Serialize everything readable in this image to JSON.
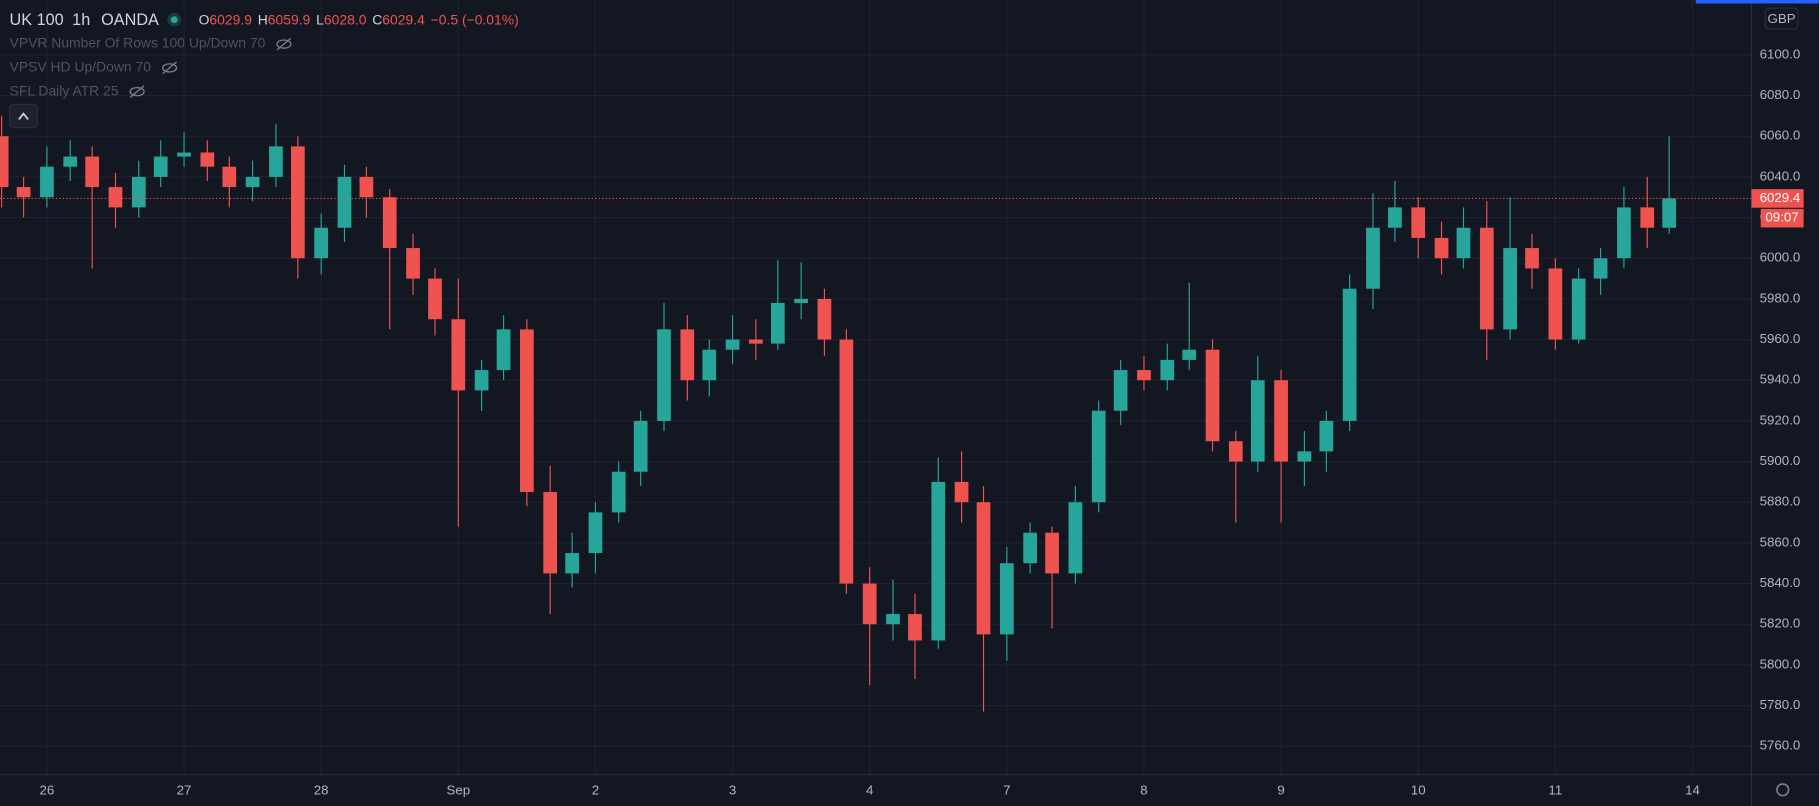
{
  "header": {
    "symbol": "UK 100",
    "interval": "1h",
    "exchange": "OANDA",
    "ohlc": [
      {
        "prefix": "O",
        "text": "6029.9"
      },
      {
        "prefix": "H",
        "text": "6059.9"
      },
      {
        "prefix": "L",
        "text": "6028.0"
      },
      {
        "prefix": "C",
        "text": "6029.4"
      }
    ],
    "change": "−0.5 (−0.01%)",
    "indicators": [
      "VPVR Number Of Rows 100 Up/Down 70",
      "VPSV HD Up/Down 70",
      "SFL Daily ATR 25"
    ],
    "currency": "GBP",
    "countdown": "09:07"
  },
  "chart_data": {
    "type": "candlestick",
    "up_color": "#26a69a",
    "down_color": "#ef5350",
    "grid": true,
    "xlim": [
      -0.34,
      12.43
    ],
    "ylim": [
      5746,
      6127
    ],
    "xticks": [
      {
        "value": 0,
        "label": "26"
      },
      {
        "value": 1,
        "label": "27"
      },
      {
        "value": 2,
        "label": "28"
      },
      {
        "value": 3,
        "label": "Sep"
      },
      {
        "value": 4,
        "label": "2"
      },
      {
        "value": 5,
        "label": "3"
      },
      {
        "value": 6,
        "label": "4"
      },
      {
        "value": 7,
        "label": "7"
      },
      {
        "value": 8,
        "label": "8"
      },
      {
        "value": 9,
        "label": "9"
      },
      {
        "value": 10,
        "label": "10"
      },
      {
        "value": 11,
        "label": "11"
      },
      {
        "value": 12,
        "label": "14"
      }
    ],
    "yticks": [
      {
        "value": 5760,
        "label": "5760.0"
      },
      {
        "value": 5780,
        "label": "5780.0"
      },
      {
        "value": 5800,
        "label": "5800.0"
      },
      {
        "value": 5820,
        "label": "5820.0"
      },
      {
        "value": 5840,
        "label": "5840.0"
      },
      {
        "value": 5860,
        "label": "5860.0"
      },
      {
        "value": 5880,
        "label": "5880.0"
      },
      {
        "value": 5900,
        "label": "5900.0"
      },
      {
        "value": 5920,
        "label": "5920.0"
      },
      {
        "value": 5940,
        "label": "5940.0"
      },
      {
        "value": 5960,
        "label": "5960.0"
      },
      {
        "value": 5980,
        "label": "5980.0"
      },
      {
        "value": 6000,
        "label": "6000.0"
      },
      {
        "value": 6020,
        "label": "6020.0"
      },
      {
        "value": 6040,
        "label": "6040.0"
      },
      {
        "value": 6060,
        "label": "6060.0"
      },
      {
        "value": 6080,
        "label": "6080.0"
      },
      {
        "value": 6100,
        "label": "6100.0"
      }
    ],
    "last_price": {
      "value": 6029.4,
      "label": "6029.4"
    },
    "candles": [
      {
        "x": -0.33,
        "open": 6060,
        "high": 6070,
        "low": 6025,
        "close": 6035
      },
      {
        "x": -0.17,
        "open": 6035,
        "high": 6040,
        "low": 6020,
        "close": 6030
      },
      {
        "x": 0,
        "open": 6030,
        "high": 6055,
        "low": 6025,
        "close": 6045
      },
      {
        "x": 0.17,
        "open": 6045,
        "high": 6058,
        "low": 6038,
        "close": 6050
      },
      {
        "x": 0.33,
        "open": 6050,
        "high": 6055,
        "low": 5995,
        "close": 6035
      },
      {
        "x": 0.5,
        "open": 6035,
        "high": 6042,
        "low": 6015,
        "close": 6025
      },
      {
        "x": 0.67,
        "open": 6025,
        "high": 6048,
        "low": 6020,
        "close": 6040
      },
      {
        "x": 0.83,
        "open": 6040,
        "high": 6058,
        "low": 6035,
        "close": 6050
      },
      {
        "x": 1,
        "open": 6050,
        "high": 6062,
        "low": 6045,
        "close": 6052
      },
      {
        "x": 1.17,
        "open": 6052,
        "high": 6058,
        "low": 6038,
        "close": 6045
      },
      {
        "x": 1.33,
        "open": 6045,
        "high": 6050,
        "low": 6025,
        "close": 6035
      },
      {
        "x": 1.5,
        "open": 6035,
        "high": 6048,
        "low": 6028,
        "close": 6040
      },
      {
        "x": 1.67,
        "open": 6040,
        "high": 6066,
        "low": 6035,
        "close": 6055
      },
      {
        "x": 1.83,
        "open": 6055,
        "high": 6060,
        "low": 5990,
        "close": 6000
      },
      {
        "x": 2,
        "open": 6000,
        "high": 6022,
        "low": 5992,
        "close": 6015
      },
      {
        "x": 2.17,
        "open": 6015,
        "high": 6046,
        "low": 6008,
        "close": 6040
      },
      {
        "x": 2.33,
        "open": 6040,
        "high": 6045,
        "low": 6020,
        "close": 6030
      },
      {
        "x": 2.5,
        "open": 6030,
        "high": 6034,
        "low": 5965,
        "close": 6005
      },
      {
        "x": 2.67,
        "open": 6005,
        "high": 6012,
        "low": 5982,
        "close": 5990
      },
      {
        "x": 2.83,
        "open": 5990,
        "high": 5995,
        "low": 5962,
        "close": 5970
      },
      {
        "x": 3,
        "open": 5970,
        "high": 5990,
        "low": 5868,
        "close": 5935
      },
      {
        "x": 3.17,
        "open": 5935,
        "high": 5950,
        "low": 5925,
        "close": 5945
      },
      {
        "x": 3.33,
        "open": 5945,
        "high": 5972,
        "low": 5940,
        "close": 5965
      },
      {
        "x": 3.5,
        "open": 5965,
        "high": 5970,
        "low": 5878,
        "close": 5885
      },
      {
        "x": 3.67,
        "open": 5885,
        "high": 5898,
        "low": 5825,
        "close": 5845
      },
      {
        "x": 3.83,
        "open": 5845,
        "high": 5865,
        "low": 5838,
        "close": 5855
      },
      {
        "x": 4,
        "open": 5855,
        "high": 5880,
        "low": 5845,
        "close": 5875
      },
      {
        "x": 4.17,
        "open": 5875,
        "high": 5900,
        "low": 5870,
        "close": 5895
      },
      {
        "x": 4.33,
        "open": 5895,
        "high": 5925,
        "low": 5888,
        "close": 5920
      },
      {
        "x": 4.5,
        "open": 5920,
        "high": 5978,
        "low": 5915,
        "close": 5965
      },
      {
        "x": 4.67,
        "open": 5965,
        "high": 5972,
        "low": 5930,
        "close": 5940
      },
      {
        "x": 4.83,
        "open": 5940,
        "high": 5960,
        "low": 5932,
        "close": 5955
      },
      {
        "x": 5,
        "open": 5955,
        "high": 5972,
        "low": 5948,
        "close": 5960
      },
      {
        "x": 5.17,
        "open": 5960,
        "high": 5970,
        "low": 5950,
        "close": 5958
      },
      {
        "x": 5.33,
        "open": 5958,
        "high": 5999,
        "low": 5955,
        "close": 5978
      },
      {
        "x": 5.5,
        "open": 5978,
        "high": 5998,
        "low": 5970,
        "close": 5980
      },
      {
        "x": 5.67,
        "open": 5980,
        "high": 5985,
        "low": 5952,
        "close": 5960
      },
      {
        "x": 5.83,
        "open": 5960,
        "high": 5965,
        "low": 5835,
        "close": 5840
      },
      {
        "x": 6,
        "open": 5840,
        "high": 5848,
        "low": 5790,
        "close": 5820
      },
      {
        "x": 6.17,
        "open": 5820,
        "high": 5842,
        "low": 5812,
        "close": 5825
      },
      {
        "x": 6.33,
        "open": 5825,
        "high": 5835,
        "low": 5793,
        "close": 5812
      },
      {
        "x": 6.5,
        "open": 5812,
        "high": 5902,
        "low": 5808,
        "close": 5890
      },
      {
        "x": 6.67,
        "open": 5890,
        "high": 5905,
        "low": 5870,
        "close": 5880
      },
      {
        "x": 6.83,
        "open": 5880,
        "high": 5888,
        "low": 5777,
        "close": 5815
      },
      {
        "x": 7,
        "open": 5815,
        "high": 5858,
        "low": 5802,
        "close": 5850
      },
      {
        "x": 7.17,
        "open": 5850,
        "high": 5870,
        "low": 5845,
        "close": 5865
      },
      {
        "x": 7.33,
        "open": 5865,
        "high": 5868,
        "low": 5818,
        "close": 5845
      },
      {
        "x": 7.5,
        "open": 5845,
        "high": 5888,
        "low": 5840,
        "close": 5880
      },
      {
        "x": 7.67,
        "open": 5880,
        "high": 5930,
        "low": 5875,
        "close": 5925
      },
      {
        "x": 7.83,
        "open": 5925,
        "high": 5950,
        "low": 5918,
        "close": 5945
      },
      {
        "x": 8,
        "open": 5945,
        "high": 5952,
        "low": 5935,
        "close": 5940
      },
      {
        "x": 8.17,
        "open": 5940,
        "high": 5958,
        "low": 5935,
        "close": 5950
      },
      {
        "x": 8.33,
        "open": 5950,
        "high": 5988,
        "low": 5945,
        "close": 5955
      },
      {
        "x": 8.5,
        "open": 5955,
        "high": 5960,
        "low": 5905,
        "close": 5910
      },
      {
        "x": 8.67,
        "open": 5910,
        "high": 5915,
        "low": 5870,
        "close": 5900
      },
      {
        "x": 8.83,
        "open": 5900,
        "high": 5952,
        "low": 5895,
        "close": 5940
      },
      {
        "x": 9,
        "open": 5940,
        "high": 5945,
        "low": 5870,
        "close": 5900
      },
      {
        "x": 9.17,
        "open": 5900,
        "high": 5915,
        "low": 5888,
        "close": 5905
      },
      {
        "x": 9.33,
        "open": 5905,
        "high": 5925,
        "low": 5895,
        "close": 5920
      },
      {
        "x": 9.5,
        "open": 5920,
        "high": 5992,
        "low": 5915,
        "close": 5985
      },
      {
        "x": 9.67,
        "open": 5985,
        "high": 6032,
        "low": 5975,
        "close": 6015
      },
      {
        "x": 9.83,
        "open": 6015,
        "high": 6038,
        "low": 6008,
        "close": 6025
      },
      {
        "x": 10,
        "open": 6025,
        "high": 6030,
        "low": 6000,
        "close": 6010
      },
      {
        "x": 10.17,
        "open": 6010,
        "high": 6018,
        "low": 5992,
        "close": 6000
      },
      {
        "x": 10.33,
        "open": 6000,
        "high": 6025,
        "low": 5995,
        "close": 6015
      },
      {
        "x": 10.5,
        "open": 6015,
        "high": 6028,
        "low": 5950,
        "close": 5965
      },
      {
        "x": 10.67,
        "open": 5965,
        "high": 6030,
        "low": 5960,
        "close": 6005
      },
      {
        "x": 10.83,
        "open": 6005,
        "high": 6012,
        "low": 5985,
        "close": 5995
      },
      {
        "x": 11,
        "open": 5995,
        "high": 6000,
        "low": 5955,
        "close": 5960
      },
      {
        "x": 11.17,
        "open": 5960,
        "high": 5995,
        "low": 5958,
        "close": 5990
      },
      {
        "x": 11.33,
        "open": 5990,
        "high": 6005,
        "low": 5982,
        "close": 6000
      },
      {
        "x": 11.5,
        "open": 6000,
        "high": 6035,
        "low": 5995,
        "close": 6025
      },
      {
        "x": 11.67,
        "open": 6025,
        "high": 6040,
        "low": 6005,
        "close": 6015
      },
      {
        "x": 11.83,
        "open": 6015,
        "high": 6060,
        "low": 6012,
        "close": 6029.4
      }
    ]
  }
}
